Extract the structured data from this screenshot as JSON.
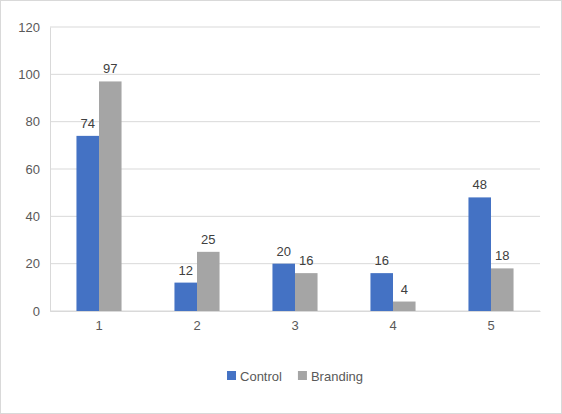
{
  "chart_data": {
    "type": "bar",
    "categories": [
      "1",
      "2",
      "3",
      "4",
      "5"
    ],
    "series": [
      {
        "name": "Control",
        "color": "#4472c4",
        "values": [
          74,
          12,
          20,
          16,
          48
        ]
      },
      {
        "name": "Branding",
        "color": "#a5a5a5",
        "values": [
          97,
          25,
          16,
          4,
          18
        ]
      }
    ],
    "ylim": [
      0,
      120
    ],
    "yticks": [
      0,
      20,
      40,
      60,
      80,
      100,
      120
    ],
    "grid": true,
    "legend": "bottom",
    "data_labels": true
  }
}
